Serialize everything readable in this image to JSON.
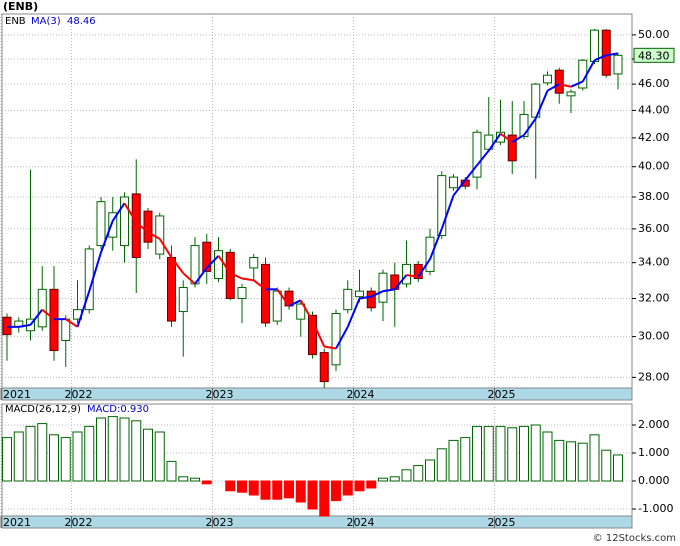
{
  "footer": "© 12Stocks.com",
  "chart_data": [
    {
      "type": "candlestick",
      "title": "(ENB)",
      "ticker": "ENB",
      "ma_name": "MA(3)",
      "ma_label": "48.46",
      "price_label": "48.30",
      "log_scale": true,
      "grid": true,
      "up_color": "#006600",
      "down_color": "#ff0000",
      "ma_up_color": "#0000ff",
      "ma_down_color": "#ff0000",
      "categories": [
        "2021",
        null,
        null,
        null,
        null,
        null,
        "2022",
        null,
        null,
        null,
        null,
        null,
        null,
        null,
        null,
        null,
        null,
        null,
        "2023",
        null,
        null,
        null,
        null,
        null,
        null,
        null,
        null,
        null,
        null,
        null,
        "2024",
        null,
        null,
        null,
        null,
        null,
        null,
        null,
        null,
        null,
        null,
        null,
        "2025",
        null,
        null,
        null,
        null,
        null,
        null,
        null,
        null,
        null,
        null
      ],
      "open": [
        31,
        30.5,
        30.3,
        30.5,
        32.5,
        29.8,
        30.9,
        31.4,
        35,
        35.5,
        35,
        38.2,
        37.1,
        34.5,
        34.3,
        31.3,
        32.8,
        35.2,
        33.1,
        34.6,
        32,
        33.7,
        33.9,
        30.8,
        32.4,
        30.9,
        31.1,
        29.2,
        28.6,
        31.4,
        32.1,
        32.4,
        31.8,
        33.3,
        32.8,
        33.9,
        33.5,
        35.6,
        38.6,
        39.1,
        39.3,
        41.2,
        41.7,
        42.2,
        42.1,
        43.5,
        46.1,
        47.1,
        45.1,
        45.7,
        47.8,
        50.4,
        46.8
      ],
      "high": [
        31.2,
        31,
        39.8,
        33.8,
        33.8,
        31.1,
        33,
        35,
        38,
        38,
        38.3,
        40.5,
        37.3,
        37,
        35,
        33,
        35.5,
        35.7,
        35.5,
        34.8,
        32.8,
        34.5,
        34.3,
        32.6,
        32.6,
        31.9,
        31.3,
        29.4,
        31.4,
        33,
        33.6,
        32.6,
        33.6,
        34,
        35.3,
        34.1,
        36,
        39.7,
        39.5,
        39.3,
        42.6,
        45,
        44.8,
        44.7,
        44.7,
        46.1,
        47,
        47.3,
        45.6,
        48,
        50.5,
        50.5,
        48.5
      ],
      "low": [
        28.8,
        30.2,
        29.8,
        30.3,
        28.8,
        28.5,
        30.7,
        31.2,
        34.8,
        34.7,
        34,
        32.3,
        34.8,
        34.2,
        30.5,
        29,
        32.6,
        32.8,
        32.9,
        31.9,
        30.7,
        33,
        30.5,
        30.6,
        31.4,
        30,
        28.9,
        27.5,
        28.3,
        31.2,
        31.8,
        31.3,
        30.8,
        30.5,
        32.6,
        32.9,
        33.3,
        35.4,
        38.4,
        38.5,
        38.5,
        41,
        41.5,
        39.5,
        41.9,
        39.2,
        45.9,
        44.5,
        43.8,
        45.5,
        47.6,
        46.5,
        45.6
      ],
      "close": [
        30.1,
        30.8,
        30.9,
        32.5,
        29.3,
        30.9,
        31.4,
        34.8,
        37.7,
        37,
        38,
        34.3,
        35.2,
        36.8,
        30.8,
        32.6,
        35,
        33.5,
        34.7,
        32,
        32.6,
        34.3,
        30.7,
        32.4,
        31.6,
        31.7,
        29.1,
        27.8,
        31.2,
        32.5,
        32.4,
        31.5,
        33.4,
        32.5,
        33.9,
        33.1,
        35.5,
        39.4,
        39.3,
        38.7,
        42.4,
        42.2,
        42.4,
        40.4,
        43.7,
        46,
        46.7,
        45.3,
        45.4,
        47.9,
        50.4,
        46.7,
        48.3
      ],
      "ma": [
        30.5,
        30.5,
        30.6,
        31.4,
        30.9,
        30.9,
        30.5,
        32.4,
        34.6,
        36.5,
        37.6,
        36.4,
        35.8,
        35.4,
        34.3,
        33.4,
        32.8,
        33.7,
        34.4,
        33.4,
        33.1,
        33,
        32.5,
        32.5,
        31.6,
        31.9,
        30.8,
        29.5,
        29.4,
        30.5,
        32,
        32.1,
        32.4,
        32.5,
        33.3,
        33.2,
        34.2,
        36,
        38.1,
        39.1,
        40.1,
        41.1,
        42.3,
        41.7,
        42.2,
        43.4,
        45.5,
        46,
        45.8,
        46.2,
        47.9,
        48.3,
        48.46
      ],
      "ylim": [
        27.5,
        51.8
      ],
      "yticks": [
        {
          "value": 28,
          "label": "28.00"
        },
        {
          "value": 30,
          "label": "30.00"
        },
        {
          "value": 32,
          "label": "32.00"
        },
        {
          "value": 34,
          "label": "34.00"
        },
        {
          "value": 36,
          "label": "36.00"
        },
        {
          "value": 38,
          "label": "38.00"
        },
        {
          "value": 40,
          "label": "40.00"
        },
        {
          "value": 42,
          "label": "42.00"
        },
        {
          "value": 44,
          "label": "44.00"
        },
        {
          "value": 46,
          "label": "46.00"
        },
        {
          "value": 48,
          "label": "48.00"
        },
        {
          "value": 50,
          "label": "50.00"
        }
      ]
    },
    {
      "type": "bar",
      "title": "MACD(26,12,9)",
      "legend_label": "MACD:0.930",
      "grid": true,
      "up_color": "#006600",
      "down_color": "#ff0000",
      "categories": [
        "2021",
        null,
        null,
        null,
        null,
        null,
        "2022",
        null,
        null,
        null,
        null,
        null,
        null,
        null,
        null,
        null,
        null,
        null,
        "2023",
        null,
        null,
        null,
        null,
        null,
        null,
        null,
        null,
        null,
        null,
        null,
        "2024",
        null,
        null,
        null,
        null,
        null,
        null,
        null,
        null,
        null,
        null,
        null,
        "2025",
        null,
        null,
        null,
        null,
        null,
        null,
        null,
        null,
        null,
        null
      ],
      "values": [
        1.55,
        1.75,
        1.95,
        2.05,
        1.65,
        1.55,
        1.75,
        1.95,
        2.25,
        2.3,
        2.25,
        2.15,
        1.85,
        1.75,
        0.7,
        0.15,
        0.1,
        -0.1,
        0,
        -0.35,
        -0.4,
        -0.5,
        -0.65,
        -0.65,
        -0.6,
        -0.75,
        -1,
        -1.25,
        -0.7,
        -0.5,
        -0.35,
        -0.25,
        0.1,
        0.15,
        0.4,
        0.55,
        0.75,
        1.15,
        1.45,
        1.55,
        1.95,
        1.95,
        1.95,
        1.9,
        1.95,
        2,
        1.75,
        1.45,
        1.4,
        1.35,
        1.65,
        1.1,
        0.93
      ],
      "ylim": [
        -1.25,
        2.75
      ],
      "yticks": [
        {
          "value": -1,
          "label": "-1.000"
        },
        {
          "value": 0,
          "label": "0.000"
        },
        {
          "value": 1,
          "label": "1.000"
        },
        {
          "value": 2,
          "label": "2.000"
        }
      ]
    }
  ]
}
